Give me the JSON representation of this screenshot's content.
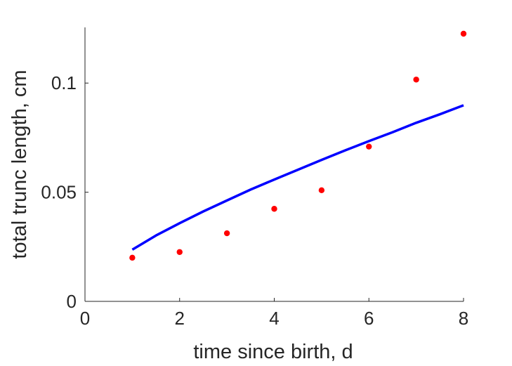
{
  "chart_data": {
    "type": "scatter",
    "xlabel": "time since birth, d",
    "ylabel": "total trunc length, cm",
    "xlim": [
      0,
      8
    ],
    "ylim": [
      0,
      0.1255
    ],
    "x_ticks": [
      0,
      2,
      4,
      6,
      8
    ],
    "x_tick_labels": [
      "0",
      "2",
      "4",
      "6",
      "8"
    ],
    "y_ticks": [
      0,
      0.05,
      0.1
    ],
    "y_tick_labels": [
      "0",
      "0.05",
      "0.1"
    ],
    "grid": false,
    "series": [
      {
        "kind": "points",
        "color": "#ff0000",
        "x": [
          1,
          2,
          3,
          4,
          5,
          6,
          7,
          8
        ],
        "y": [
          0.02,
          0.0226,
          0.0312,
          0.0424,
          0.0509,
          0.0709,
          0.1016,
          0.1226
        ]
      },
      {
        "kind": "line",
        "color": "#0000ff",
        "x": [
          1,
          1.5,
          2,
          2.5,
          3,
          3.5,
          4,
          4.5,
          5,
          5.5,
          6,
          6.5,
          7,
          7.5,
          8
        ],
        "y": [
          0.0237,
          0.0302,
          0.0358,
          0.0412,
          0.0462,
          0.0512,
          0.0558,
          0.0603,
          0.0648,
          0.0692,
          0.0734,
          0.0775,
          0.0818,
          0.0857,
          0.0898
        ]
      }
    ]
  }
}
